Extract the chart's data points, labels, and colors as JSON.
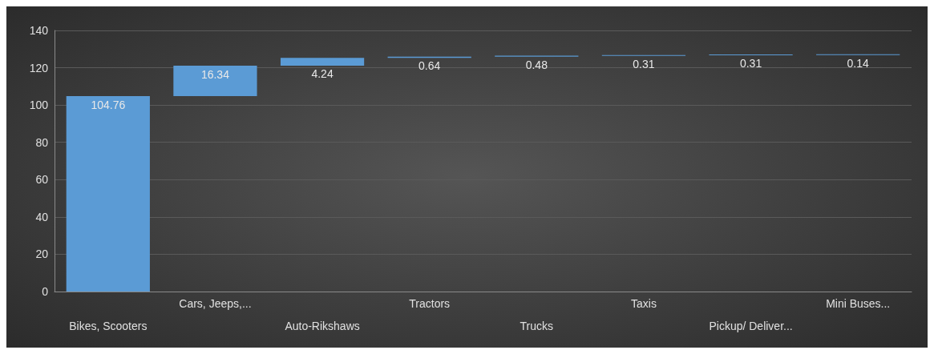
{
  "chart_data": {
    "type": "bar",
    "categories": [
      "Bikes, Scooters",
      "Cars, Jeeps,...",
      "Auto-Rikshaws",
      "Tractors",
      "Trucks",
      "Taxis",
      "Pickup/ Deliver...",
      "Mini Buses..."
    ],
    "values": [
      104.76,
      16.34,
      4.24,
      0.64,
      0.48,
      0.31,
      0.31,
      0.14
    ],
    "base": [
      0,
      104.76,
      121.1,
      125.34,
      125.98,
      126.46,
      126.77,
      127.08
    ],
    "color": "#5b9bd5",
    "ylim": [
      0,
      140
    ],
    "yticks": [
      0,
      20,
      40,
      60,
      80,
      100,
      120,
      140
    ],
    "grid": "y",
    "data_labels": true
  }
}
